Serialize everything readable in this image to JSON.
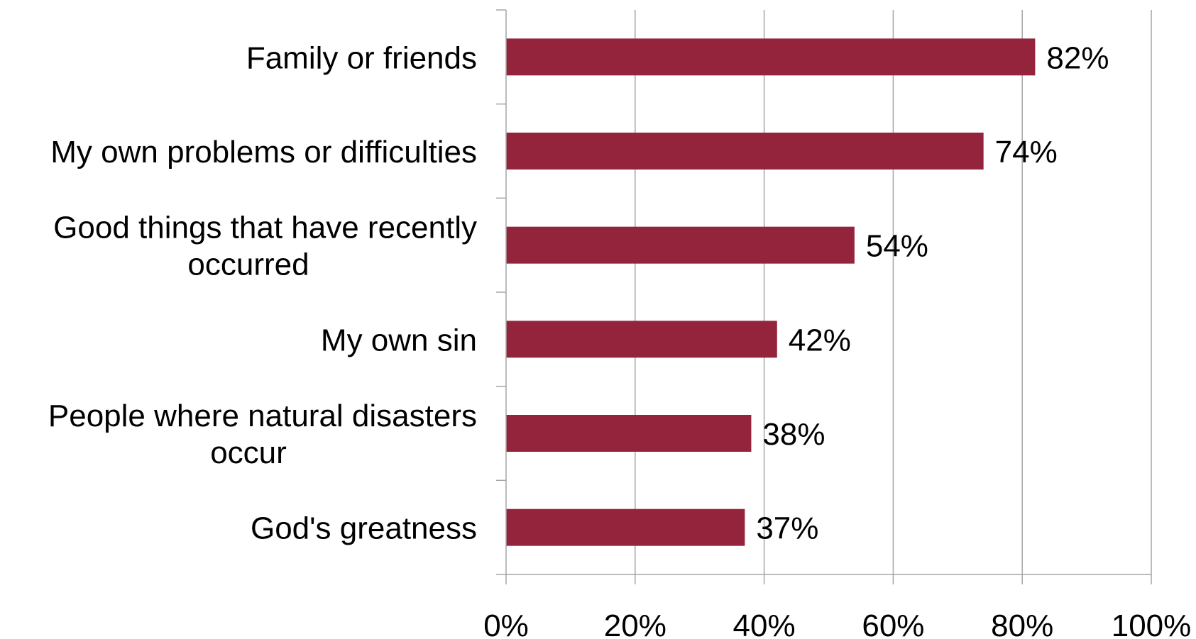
{
  "chart_data": {
    "type": "bar",
    "orientation": "horizontal",
    "categories": [
      [
        "Family or friends"
      ],
      [
        "My own problems or difficulties"
      ],
      [
        "Good things that have recently",
        "occurred"
      ],
      [
        "My own sin"
      ],
      [
        "People where natural disasters",
        "occur"
      ],
      [
        "God's greatness"
      ]
    ],
    "values": [
      82,
      74,
      54,
      42,
      38,
      37
    ],
    "data_labels": [
      "82%",
      "74%",
      "54%",
      "42%",
      "38%",
      "37%"
    ],
    "x_ticks": [
      "0%",
      "20%",
      "40%",
      "60%",
      "80%",
      "100%"
    ],
    "x_tick_values": [
      0,
      20,
      40,
      60,
      80,
      100
    ],
    "xlim": [
      0,
      100
    ],
    "grid": "vertical",
    "bar_color": "#93243B",
    "grid_color": "#a6a6a6",
    "axis_color": "#a6a6a6",
    "title": "",
    "xlabel": "",
    "ylabel": "",
    "legend": "none"
  }
}
